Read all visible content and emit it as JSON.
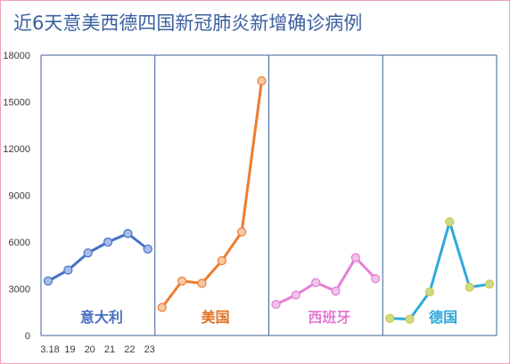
{
  "title": "近6天意美西德四国新冠肺炎新增确诊病例",
  "colors": {
    "italy": "#4472c4",
    "usa": "#ed7d31",
    "spain": "#e67ed6",
    "germany": "#2eaadc",
    "grid": "#3d5f9a"
  },
  "chart_data": {
    "type": "line",
    "title": "近6天意美西德四国新冠肺炎新增确诊病例",
    "ylim": [
      0,
      18000
    ],
    "yticks": [
      0,
      3000,
      6000,
      9000,
      12000,
      15000,
      18000
    ],
    "xtick_labels": [
      "3.18",
      "19",
      "20",
      "21",
      "22",
      "23"
    ],
    "series": [
      {
        "name": "意大利",
        "values": [
          3500,
          4200,
          5300,
          6000,
          6550,
          5550
        ]
      },
      {
        "name": "美国",
        "values": [
          1800,
          3500,
          3350,
          4800,
          6650,
          16350
        ]
      },
      {
        "name": "西班牙",
        "values": [
          2000,
          2600,
          3400,
          2850,
          5000,
          3650
        ]
      },
      {
        "name": "德国",
        "values": [
          1100,
          1050,
          2800,
          7300,
          3100,
          3300
        ]
      }
    ]
  }
}
